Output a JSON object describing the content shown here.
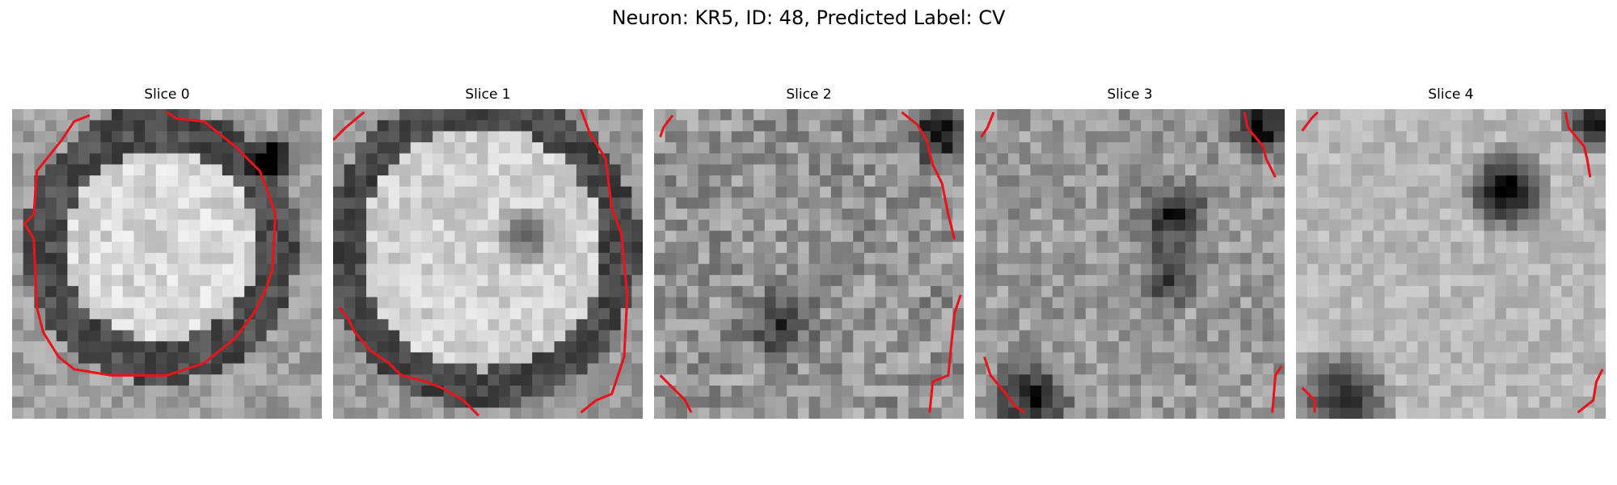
{
  "figure": {
    "title": "Neuron: KR5, ID: 48, Predicted Label: CV"
  },
  "panels": [
    {
      "title": "Slice 0",
      "grid": 28,
      "brightness": "bright disc",
      "contour_color": "#e8141c",
      "contours": [
        [
          [
            0.25,
            0.02
          ],
          [
            0.2,
            0.04
          ],
          [
            0.16,
            0.1
          ],
          [
            0.08,
            0.2
          ],
          [
            0.07,
            0.34
          ],
          [
            0.04,
            0.37
          ],
          [
            0.07,
            0.42
          ],
          [
            0.08,
            0.64
          ],
          [
            0.1,
            0.72
          ],
          [
            0.15,
            0.8
          ],
          [
            0.2,
            0.84
          ],
          [
            0.32,
            0.86
          ],
          [
            0.5,
            0.86
          ],
          [
            0.62,
            0.82
          ],
          [
            0.72,
            0.74
          ],
          [
            0.78,
            0.66
          ],
          [
            0.82,
            0.58
          ],
          [
            0.84,
            0.52
          ],
          [
            0.85,
            0.34
          ],
          [
            0.83,
            0.28
          ],
          [
            0.8,
            0.2
          ],
          [
            0.72,
            0.12
          ],
          [
            0.62,
            0.04
          ],
          [
            0.53,
            0.03
          ],
          [
            0.5,
            0.01
          ]
        ]
      ]
    },
    {
      "title": "Slice 1",
      "grid": 28,
      "brightness": "bright disc with dark nucleus",
      "contour_color": "#e8141c",
      "contours": [
        [
          [
            0.0,
            0.1
          ],
          [
            0.04,
            0.06
          ],
          [
            0.1,
            0.01
          ]
        ],
        [
          [
            0.8,
            0.0
          ],
          [
            0.83,
            0.08
          ],
          [
            0.88,
            0.16
          ],
          [
            0.9,
            0.32
          ],
          [
            0.93,
            0.4
          ],
          [
            0.95,
            0.6
          ],
          [
            0.94,
            0.8
          ],
          [
            0.9,
            0.92
          ],
          [
            0.85,
            0.94
          ],
          [
            0.8,
            0.98
          ]
        ],
        [
          [
            0.02,
            0.64
          ],
          [
            0.05,
            0.68
          ],
          [
            0.07,
            0.72
          ],
          [
            0.12,
            0.78
          ],
          [
            0.18,
            0.82
          ],
          [
            0.22,
            0.86
          ],
          [
            0.3,
            0.88
          ],
          [
            0.35,
            0.9
          ],
          [
            0.42,
            0.94
          ],
          [
            0.45,
            0.97
          ],
          [
            0.47,
            0.99
          ]
        ]
      ]
    },
    {
      "title": "Slice 2",
      "grid": 28,
      "brightness": "noisy texture",
      "contour_color": "#e8141c",
      "contours": [
        [
          [
            0.02,
            0.09
          ],
          [
            0.03,
            0.06
          ],
          [
            0.06,
            0.02
          ]
        ],
        [
          [
            0.8,
            0.01
          ],
          [
            0.85,
            0.05
          ],
          [
            0.88,
            0.1
          ],
          [
            0.9,
            0.18
          ],
          [
            0.93,
            0.24
          ],
          [
            0.95,
            0.34
          ],
          [
            0.97,
            0.42
          ]
        ],
        [
          [
            0.99,
            0.6
          ],
          [
            0.97,
            0.66
          ],
          [
            0.96,
            0.76
          ],
          [
            0.95,
            0.86
          ],
          [
            0.9,
            0.88
          ],
          [
            0.89,
            0.98
          ]
        ],
        [
          [
            0.02,
            0.86
          ],
          [
            0.1,
            0.94
          ],
          [
            0.12,
            0.98
          ]
        ]
      ]
    },
    {
      "title": "Slice 3",
      "grid": 28,
      "brightness": "noisy texture with dark streak",
      "contour_color": "#e8141c",
      "contours": [
        [
          [
            0.02,
            0.09
          ],
          [
            0.04,
            0.06
          ],
          [
            0.06,
            0.01
          ]
        ],
        [
          [
            0.87,
            0.01
          ],
          [
            0.88,
            0.06
          ],
          [
            0.93,
            0.12
          ],
          [
            0.94,
            0.16
          ],
          [
            0.97,
            0.22
          ]
        ],
        [
          [
            0.03,
            0.8
          ],
          [
            0.05,
            0.86
          ],
          [
            0.1,
            0.92
          ],
          [
            0.13,
            0.96
          ],
          [
            0.16,
            0.98
          ]
        ],
        [
          [
            0.99,
            0.83
          ],
          [
            0.97,
            0.86
          ],
          [
            0.96,
            0.98
          ]
        ]
      ]
    },
    {
      "title": "Slice 4",
      "grid": 28,
      "brightness": "smooth texture with dark spot",
      "contour_color": "#e8141c",
      "contours": [
        [
          [
            0.02,
            0.07
          ],
          [
            0.05,
            0.03
          ],
          [
            0.07,
            0.01
          ]
        ],
        [
          [
            0.87,
            0.01
          ],
          [
            0.88,
            0.06
          ],
          [
            0.93,
            0.12
          ],
          [
            0.94,
            0.16
          ],
          [
            0.95,
            0.22
          ]
        ],
        [
          [
            0.02,
            0.9
          ],
          [
            0.06,
            0.94
          ],
          [
            0.06,
            0.98
          ]
        ],
        [
          [
            0.99,
            0.84
          ],
          [
            0.97,
            0.88
          ],
          [
            0.96,
            0.94
          ],
          [
            0.91,
            0.98
          ]
        ]
      ]
    }
  ]
}
